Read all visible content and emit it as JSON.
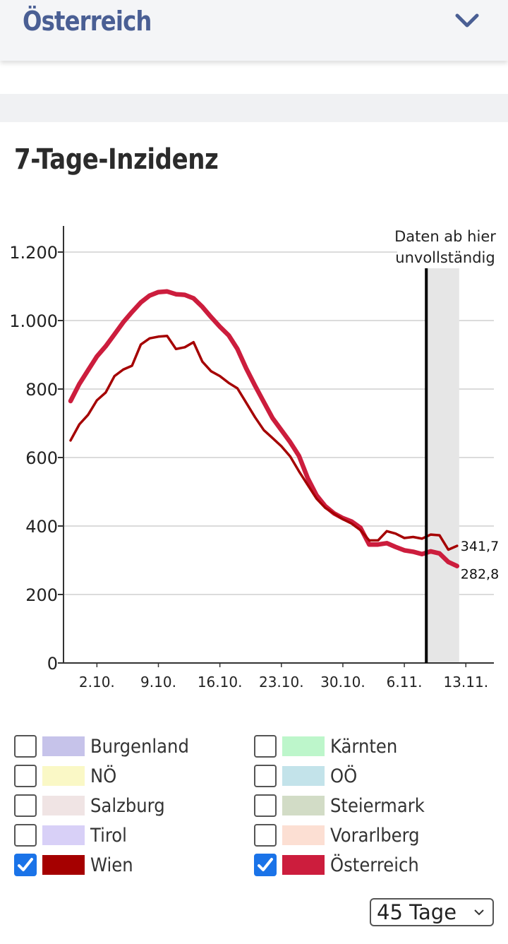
{
  "header": {
    "region": "Österreich",
    "dropdown_icon": "chevron-down-icon"
  },
  "card": {
    "title": "7-Tage-Inzidenz"
  },
  "annotation": {
    "line1": "Daten ab hier",
    "line2": "unvollständig"
  },
  "chart_data": {
    "type": "line",
    "title": "7-Tage-Inzidenz",
    "xlabel": "",
    "ylabel": "",
    "ylim": [
      0,
      1200
    ],
    "yticks": [
      0,
      200,
      400,
      600,
      800,
      1000,
      1200
    ],
    "ytick_labels": [
      "0",
      "200",
      "400",
      "600",
      "800",
      "1.000",
      "1.200"
    ],
    "xticks": [
      {
        "day": 4,
        "label": "2.10."
      },
      {
        "day": 11,
        "label": "9.10."
      },
      {
        "day": 18,
        "label": "16.10."
      },
      {
        "day": 25,
        "label": "23.10."
      },
      {
        "day": 32,
        "label": "30.10."
      },
      {
        "day": 39,
        "label": "6.11."
      },
      {
        "day": 46,
        "label": "13.11."
      }
    ],
    "incomplete_from_day": 41.5,
    "grid": true,
    "series": [
      {
        "name": "Österreich",
        "color": "#cc1d3d",
        "end_label": "282,8",
        "values": [
          765,
          815,
          855,
          895,
          925,
          960,
          995,
          1025,
          1053,
          1073,
          1083,
          1085,
          1077,
          1075,
          1065,
          1040,
          1010,
          982,
          957,
          917,
          860,
          810,
          762,
          715,
          680,
          645,
          605,
          540,
          490,
          458,
          437,
          423,
          413,
          395,
          346,
          346,
          350,
          339,
          329,
          325,
          318,
          326,
          320,
          295,
          283
        ]
      },
      {
        "name": "Wien",
        "color": "#a50000",
        "end_label": "341,7",
        "values": [
          650,
          697,
          725,
          767,
          790,
          838,
          857,
          868,
          930,
          948,
          953,
          955,
          917,
          922,
          937,
          880,
          852,
          838,
          818,
          802,
          760,
          718,
          680,
          657,
          633,
          603,
          560,
          520,
          480,
          453,
          436,
          420,
          407,
          388,
          358,
          358,
          385,
          378,
          365,
          368,
          363,
          375,
          373,
          331,
          342
        ]
      }
    ]
  },
  "legend": {
    "items": [
      {
        "label": "Burgenland",
        "color": "#c6c3ea",
        "checked": false
      },
      {
        "label": "Kärnten",
        "color": "#bdf6cb",
        "checked": false
      },
      {
        "label": "NÖ",
        "color": "#faf8c6",
        "checked": false
      },
      {
        "label": "OÖ",
        "color": "#c3e3ea",
        "checked": false
      },
      {
        "label": "Salzburg",
        "color": "#f0e4e4",
        "checked": false
      },
      {
        "label": "Steiermark",
        "color": "#d2dcc6",
        "checked": false
      },
      {
        "label": "Tirol",
        "color": "#d8d0f7",
        "checked": false
      },
      {
        "label": "Vorarlberg",
        "color": "#fcdfd3",
        "checked": false
      },
      {
        "label": "Wien",
        "color": "#a50000",
        "checked": true
      },
      {
        "label": "Österreich",
        "color": "#cc1d3d",
        "checked": true
      }
    ]
  },
  "range_select": {
    "value": "45 Tage"
  }
}
